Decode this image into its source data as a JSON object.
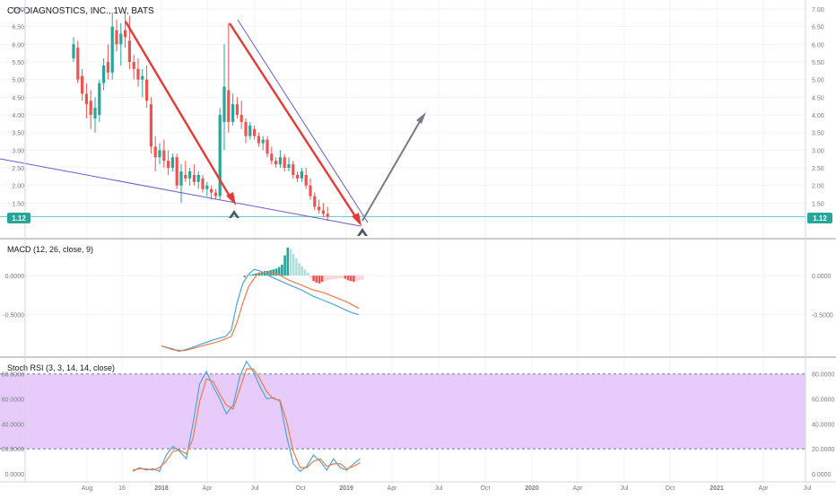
{
  "title": "CO-DIAGNOSTICS, INC., 1W, BATS",
  "last_price_label": "1.12",
  "price_axis": {
    "ticks": [
      "7.00",
      "6.50",
      "6.00",
      "5.50",
      "5.00",
      "4.50",
      "4.00",
      "3.50",
      "3.00",
      "2.50",
      "2.00",
      "1.50",
      "1.00"
    ],
    "ylim": [
      0.85,
      7.05
    ],
    "last_price": 1.12
  },
  "time_axis": {
    "labels": [
      "Aug",
      "16",
      "2018",
      "Apr",
      "Jul",
      "Oct",
      "2019",
      "Apr",
      "Jul",
      "Oct",
      "2020",
      "Apr",
      "Jul",
      "Oct",
      "2021",
      "Apr",
      "Jul"
    ]
  },
  "macd": {
    "title": "MACD (12, 26, close, 9)",
    "ticks": [
      "0.0000",
      "-0.5000"
    ],
    "ylim": [
      -1.02,
      0.45
    ]
  },
  "stoch": {
    "title": "Stoch RSI (3, 3, 14, 14, close)",
    "ticks": [
      "80.0000",
      "60.0000",
      "40.0000",
      "20.0000",
      "0.0000"
    ],
    "ylim": [
      -5,
      92
    ],
    "band": [
      20,
      80
    ]
  },
  "colors": {
    "up": "#26a69a",
    "down": "#ef5350",
    "macd_line": "#4aa6e0",
    "signal_line": "#f07a46",
    "hist_pos_strong": "#26a69a",
    "hist_pos_weak": "#b2dfdb",
    "hist_neg_strong": "#ef5350",
    "hist_neg_weak": "#ffcdd2",
    "band_fill": "#e7cbfb",
    "trend_red": "#e53935",
    "trend_purple": "#6a5acd",
    "projection": "#787b86",
    "marker": "#4a5a6a",
    "price_line": "#5ec8c8"
  },
  "chart_data": [
    {
      "type": "candlestick",
      "name": "price",
      "title": "CO-DIAGNOSTICS, INC., 1W, BATS",
      "series": [
        {
          "x": 0,
          "o": 5.6,
          "h": 6.2,
          "l": 5.5,
          "c": 6.0
        },
        {
          "x": 1,
          "o": 5.9,
          "h": 6.1,
          "l": 4.9,
          "c": 5.0
        },
        {
          "x": 2,
          "o": 5.1,
          "h": 5.3,
          "l": 4.4,
          "c": 4.6
        },
        {
          "x": 3,
          "o": 4.6,
          "h": 4.9,
          "l": 3.9,
          "c": 4.3
        },
        {
          "x": 4,
          "o": 4.4,
          "h": 4.7,
          "l": 3.6,
          "c": 4.0
        },
        {
          "x": 5,
          "o": 3.9,
          "h": 4.5,
          "l": 3.5,
          "c": 4.2
        },
        {
          "x": 6,
          "o": 4.0,
          "h": 5.0,
          "l": 3.8,
          "c": 4.9
        },
        {
          "x": 7,
          "o": 4.9,
          "h": 5.6,
          "l": 4.7,
          "c": 5.4
        },
        {
          "x": 8,
          "o": 5.5,
          "h": 6.0,
          "l": 5.0,
          "c": 5.2
        },
        {
          "x": 9,
          "o": 5.2,
          "h": 6.9,
          "l": 5.0,
          "c": 6.5
        },
        {
          "x": 10,
          "o": 6.4,
          "h": 6.7,
          "l": 5.8,
          "c": 6.0
        },
        {
          "x": 11,
          "o": 6.0,
          "h": 6.6,
          "l": 5.4,
          "c": 6.3
        },
        {
          "x": 12,
          "o": 6.4,
          "h": 6.9,
          "l": 5.9,
          "c": 6.2
        },
        {
          "x": 13,
          "o": 6.1,
          "h": 6.8,
          "l": 5.3,
          "c": 5.5
        },
        {
          "x": 14,
          "o": 5.5,
          "h": 5.7,
          "l": 5.0,
          "c": 5.3
        },
        {
          "x": 15,
          "o": 5.3,
          "h": 5.6,
          "l": 4.8,
          "c": 5.0
        },
        {
          "x": 16,
          "o": 5.0,
          "h": 5.3,
          "l": 4.5,
          "c": 5.1
        },
        {
          "x": 17,
          "o": 5.0,
          "h": 5.4,
          "l": 4.2,
          "c": 4.4
        },
        {
          "x": 18,
          "o": 4.3,
          "h": 4.5,
          "l": 2.9,
          "c": 3.1
        },
        {
          "x": 19,
          "o": 3.1,
          "h": 3.4,
          "l": 2.4,
          "c": 2.8
        },
        {
          "x": 20,
          "o": 2.8,
          "h": 3.2,
          "l": 2.6,
          "c": 3.0
        },
        {
          "x": 21,
          "o": 3.0,
          "h": 3.3,
          "l": 2.5,
          "c": 2.7
        },
        {
          "x": 22,
          "o": 2.7,
          "h": 3.0,
          "l": 2.3,
          "c": 2.5
        },
        {
          "x": 23,
          "o": 2.5,
          "h": 2.9,
          "l": 2.4,
          "c": 2.8
        },
        {
          "x": 24,
          "o": 2.8,
          "h": 2.9,
          "l": 1.9,
          "c": 2.0
        },
        {
          "x": 25,
          "o": 2.0,
          "h": 2.6,
          "l": 1.5,
          "c": 2.4
        },
        {
          "x": 26,
          "o": 2.3,
          "h": 2.7,
          "l": 2.1,
          "c": 2.2
        },
        {
          "x": 27,
          "o": 2.2,
          "h": 2.5,
          "l": 2.0,
          "c": 2.4
        },
        {
          "x": 28,
          "o": 2.3,
          "h": 2.6,
          "l": 2.0,
          "c": 2.1
        },
        {
          "x": 29,
          "o": 2.1,
          "h": 2.4,
          "l": 1.9,
          "c": 2.3
        },
        {
          "x": 30,
          "o": 2.2,
          "h": 2.3,
          "l": 1.8,
          "c": 1.9
        },
        {
          "x": 31,
          "o": 1.9,
          "h": 2.1,
          "l": 1.7,
          "c": 2.0
        },
        {
          "x": 32,
          "o": 1.9,
          "h": 2.0,
          "l": 1.6,
          "c": 1.8
        },
        {
          "x": 33,
          "o": 1.8,
          "h": 1.9,
          "l": 1.6,
          "c": 1.7
        },
        {
          "x": 34,
          "o": 1.7,
          "h": 4.2,
          "l": 1.6,
          "c": 4.0
        },
        {
          "x": 35,
          "o": 3.8,
          "h": 6.0,
          "l": 3.0,
          "c": 4.8
        },
        {
          "x": 36,
          "o": 4.7,
          "h": 6.6,
          "l": 3.5,
          "c": 3.8
        },
        {
          "x": 37,
          "o": 3.8,
          "h": 4.6,
          "l": 3.7,
          "c": 4.3
        },
        {
          "x": 38,
          "o": 4.3,
          "h": 4.5,
          "l": 3.9,
          "c": 4.0
        },
        {
          "x": 39,
          "o": 4.0,
          "h": 4.4,
          "l": 3.6,
          "c": 3.8
        },
        {
          "x": 40,
          "o": 3.8,
          "h": 3.9,
          "l": 3.2,
          "c": 3.4
        },
        {
          "x": 41,
          "o": 3.4,
          "h": 3.8,
          "l": 3.3,
          "c": 3.7
        },
        {
          "x": 42,
          "o": 3.6,
          "h": 3.7,
          "l": 3.3,
          "c": 3.4
        },
        {
          "x": 43,
          "o": 3.4,
          "h": 3.5,
          "l": 3.1,
          "c": 3.2
        },
        {
          "x": 44,
          "o": 3.2,
          "h": 3.4,
          "l": 3.0,
          "c": 3.3
        },
        {
          "x": 45,
          "o": 3.3,
          "h": 3.4,
          "l": 2.8,
          "c": 2.9
        },
        {
          "x": 46,
          "o": 2.9,
          "h": 3.1,
          "l": 2.6,
          "c": 2.7
        },
        {
          "x": 47,
          "o": 2.7,
          "h": 2.8,
          "l": 2.5,
          "c": 2.6
        },
        {
          "x": 48,
          "o": 2.6,
          "h": 3.0,
          "l": 2.5,
          "c": 2.8
        },
        {
          "x": 49,
          "o": 2.8,
          "h": 2.9,
          "l": 2.4,
          "c": 2.5
        },
        {
          "x": 50,
          "o": 2.5,
          "h": 2.8,
          "l": 2.4,
          "c": 2.6
        },
        {
          "x": 51,
          "o": 2.6,
          "h": 2.7,
          "l": 2.2,
          "c": 2.3
        },
        {
          "x": 52,
          "o": 2.3,
          "h": 2.4,
          "l": 2.1,
          "c": 2.2
        },
        {
          "x": 53,
          "o": 2.2,
          "h": 2.5,
          "l": 2.1,
          "c": 2.4
        },
        {
          "x": 54,
          "o": 2.3,
          "h": 2.5,
          "l": 1.9,
          "c": 2.0
        },
        {
          "x": 55,
          "o": 2.0,
          "h": 2.2,
          "l": 1.6,
          "c": 1.7
        },
        {
          "x": 56,
          "o": 1.7,
          "h": 1.8,
          "l": 1.3,
          "c": 1.4
        },
        {
          "x": 57,
          "o": 1.4,
          "h": 1.6,
          "l": 1.2,
          "c": 1.3
        },
        {
          "x": 58,
          "o": 1.3,
          "h": 1.5,
          "l": 1.1,
          "c": 1.2
        },
        {
          "x": 59,
          "o": 1.2,
          "h": 1.4,
          "l": 1.0,
          "c": 1.12
        }
      ]
    },
    {
      "type": "bar",
      "name": "macd-histogram",
      "series": [
        {
          "x": 29,
          "y": -0.02
        },
        {
          "x": 31,
          "y": 0.01
        },
        {
          "x": 32,
          "y": 0.02
        },
        {
          "x": 33,
          "y": 0.03
        },
        {
          "x": 34,
          "y": 0.04
        },
        {
          "x": 35,
          "y": 0.05
        },
        {
          "x": 36,
          "y": 0.06
        },
        {
          "x": 37,
          "y": 0.06
        },
        {
          "x": 38,
          "y": 0.07
        },
        {
          "x": 39,
          "y": 0.08
        },
        {
          "x": 40,
          "y": 0.09
        },
        {
          "x": 41,
          "y": 0.11
        },
        {
          "x": 42,
          "y": 0.14
        },
        {
          "x": 43,
          "y": 0.26
        },
        {
          "x": 44,
          "y": 0.36
        },
        {
          "x": 45,
          "y": 0.34
        },
        {
          "x": 46,
          "y": 0.28
        },
        {
          "x": 47,
          "y": 0.22
        },
        {
          "x": 48,
          "y": 0.16
        },
        {
          "x": 49,
          "y": 0.12
        },
        {
          "x": 50,
          "y": 0.08
        },
        {
          "x": 51,
          "y": 0.04
        },
        {
          "x": 52,
          "y": -0.03
        },
        {
          "x": 53,
          "y": -0.07
        },
        {
          "x": 54,
          "y": -0.09
        },
        {
          "x": 55,
          "y": -0.1
        },
        {
          "x": 56,
          "y": -0.08
        },
        {
          "x": 57,
          "y": -0.07
        },
        {
          "x": 58,
          "y": -0.06
        },
        {
          "x": 59,
          "y": -0.05
        },
        {
          "x": 60,
          "y": -0.05
        },
        {
          "x": 61,
          "y": -0.04
        },
        {
          "x": 62,
          "y": -0.04
        },
        {
          "x": 63,
          "y": -0.03
        },
        {
          "x": 64,
          "y": -0.04
        },
        {
          "x": 65,
          "y": -0.06
        },
        {
          "x": 66,
          "y": -0.07
        },
        {
          "x": 67,
          "y": -0.08
        },
        {
          "x": 68,
          "y": -0.07
        },
        {
          "x": 69,
          "y": -0.06
        },
        {
          "x": 70,
          "y": -0.05
        }
      ]
    },
    {
      "type": "line",
      "name": "macd-lines",
      "series": [
        {
          "name": "MACD",
          "values": [
            [
              0,
              -0.9
            ],
            [
              4,
              -0.94
            ],
            [
              6,
              -0.97
            ],
            [
              9,
              -0.94
            ],
            [
              12,
              -0.9
            ],
            [
              15,
              -0.86
            ],
            [
              18,
              -0.82
            ],
            [
              22,
              -0.78
            ],
            [
              24,
              -0.7
            ],
            [
              26,
              -0.35
            ],
            [
              28,
              -0.1
            ],
            [
              30,
              0.02
            ],
            [
              32,
              0.08
            ],
            [
              34,
              0.06
            ],
            [
              38,
              -0.02
            ],
            [
              44,
              -0.12
            ],
            [
              48,
              -0.18
            ],
            [
              52,
              -0.26
            ],
            [
              56,
              -0.32
            ],
            [
              60,
              -0.38
            ],
            [
              64,
              -0.45
            ],
            [
              66,
              -0.48
            ],
            [
              68,
              -0.5
            ]
          ]
        },
        {
          "name": "Signal",
          "values": [
            [
              0,
              -0.9
            ],
            [
              4,
              -0.95
            ],
            [
              8,
              -0.96
            ],
            [
              12,
              -0.92
            ],
            [
              16,
              -0.88
            ],
            [
              20,
              -0.84
            ],
            [
              24,
              -0.78
            ],
            [
              26,
              -0.6
            ],
            [
              28,
              -0.35
            ],
            [
              30,
              -0.14
            ],
            [
              33,
              0.02
            ],
            [
              36,
              0.05
            ],
            [
              40,
              0.02
            ],
            [
              44,
              -0.06
            ],
            [
              48,
              -0.12
            ],
            [
              52,
              -0.18
            ],
            [
              56,
              -0.22
            ],
            [
              60,
              -0.28
            ],
            [
              64,
              -0.34
            ],
            [
              68,
              -0.42
            ]
          ]
        }
      ]
    },
    {
      "type": "line",
      "name": "stoch-rsi",
      "series": [
        {
          "name": "%K",
          "values": [
            [
              0,
              2
            ],
            [
              2,
              5
            ],
            [
              4,
              3
            ],
            [
              6,
              4
            ],
            [
              8,
              2
            ],
            [
              10,
              15
            ],
            [
              12,
              22
            ],
            [
              14,
              18
            ],
            [
              16,
              12
            ],
            [
              18,
              40
            ],
            [
              20,
              72
            ],
            [
              22,
              82
            ],
            [
              24,
              70
            ],
            [
              26,
              60
            ],
            [
              28,
              48
            ],
            [
              30,
              55
            ],
            [
              32,
              78
            ],
            [
              34,
              90
            ],
            [
              36,
              82
            ],
            [
              38,
              70
            ],
            [
              40,
              60
            ],
            [
              42,
              61
            ],
            [
              44,
              58
            ],
            [
              46,
              30
            ],
            [
              48,
              8
            ],
            [
              50,
              2
            ],
            [
              52,
              6
            ],
            [
              54,
              15
            ],
            [
              56,
              10
            ],
            [
              58,
              3
            ],
            [
              60,
              12
            ],
            [
              62,
              5
            ],
            [
              64,
              3
            ],
            [
              66,
              8
            ],
            [
              68,
              12
            ]
          ]
        },
        {
          "name": "%D",
          "values": [
            [
              0,
              3
            ],
            [
              2,
              4
            ],
            [
              4,
              4
            ],
            [
              6,
              3
            ],
            [
              8,
              5
            ],
            [
              10,
              10
            ],
            [
              12,
              18
            ],
            [
              14,
              19
            ],
            [
              16,
              16
            ],
            [
              18,
              28
            ],
            [
              20,
              58
            ],
            [
              22,
              76
            ],
            [
              24,
              74
            ],
            [
              26,
              64
            ],
            [
              28,
              55
            ],
            [
              30,
              52
            ],
            [
              32,
              68
            ],
            [
              34,
              84
            ],
            [
              36,
              84
            ],
            [
              38,
              76
            ],
            [
              40,
              66
            ],
            [
              42,
              60
            ],
            [
              44,
              59
            ],
            [
              46,
              42
            ],
            [
              48,
              18
            ],
            [
              50,
              5
            ],
            [
              52,
              5
            ],
            [
              54,
              10
            ],
            [
              56,
              12
            ],
            [
              58,
              6
            ],
            [
              60,
              8
            ],
            [
              62,
              8
            ],
            [
              64,
              4
            ],
            [
              66,
              6
            ],
            [
              68,
              9
            ]
          ]
        }
      ]
    }
  ]
}
